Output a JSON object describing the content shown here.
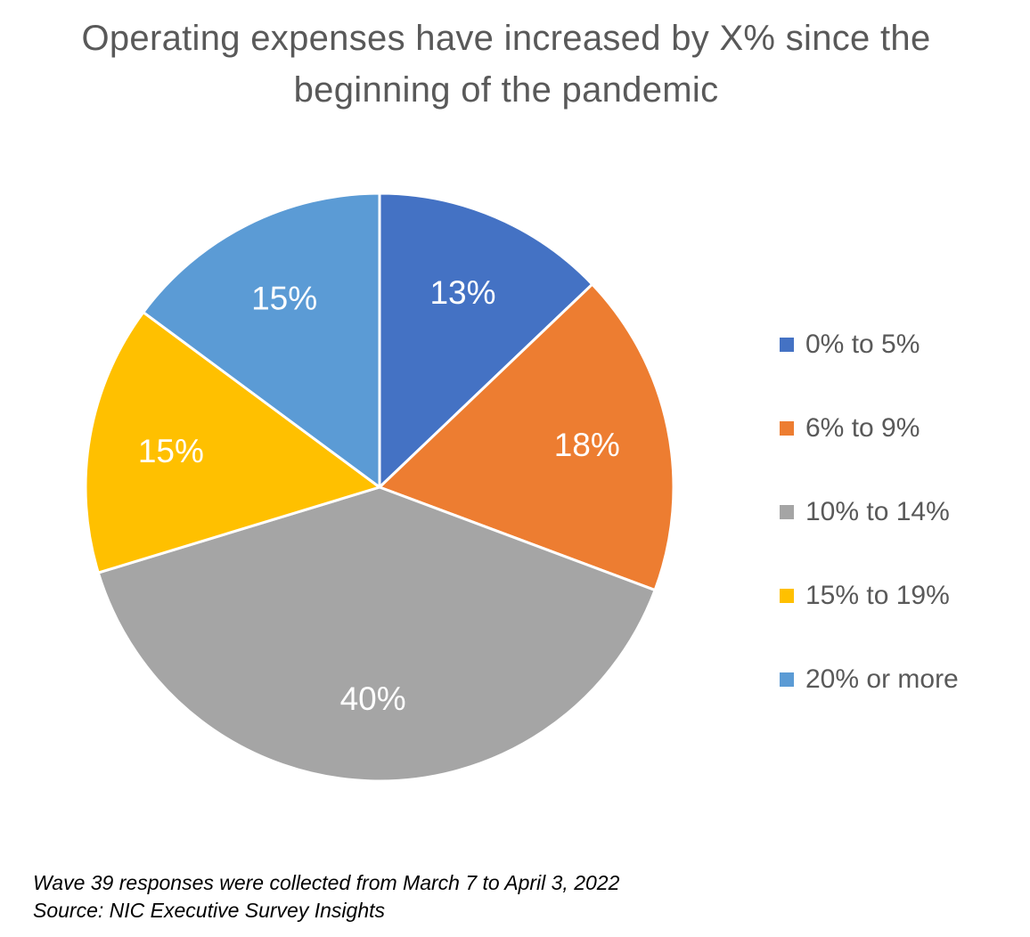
{
  "chart_data": {
    "type": "pie",
    "title_lines": [
      "Operating expenses have increased by X% since the",
      "beginning of the pandemic"
    ],
    "categories": [
      "0% to 5%",
      "6% to 9%",
      "10% to 14%",
      "15% to 19%",
      "20% or more"
    ],
    "values": [
      13,
      18,
      40,
      15,
      15
    ],
    "data_labels": [
      "13%",
      "18%",
      "40%",
      "15%",
      "15%"
    ],
    "colors": [
      "#4472C4",
      "#ED7D31",
      "#A5A5A5",
      "#FFC000",
      "#5B9BD5"
    ],
    "start_angle": "12 o'clock",
    "direction": "clockwise",
    "legend_position": "right"
  },
  "notes": [
    "Wave 39 responses were collected from March 7 to April 3, 2022",
    "Source: NIC Executive Survey Insights"
  ]
}
